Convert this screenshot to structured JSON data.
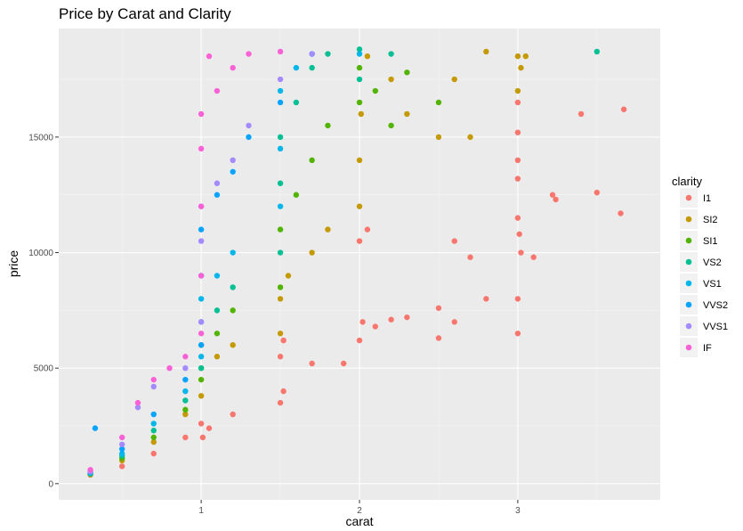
{
  "chart_data": {
    "type": "scatter",
    "title": "Price by Carat and Clarity",
    "xlabel": "carat",
    "ylabel": "price",
    "xlim": [
      0.1,
      3.9
    ],
    "ylim": [
      -700,
      19700
    ],
    "x_ticks": [
      1,
      2,
      3
    ],
    "x_tick_labels": [
      "1",
      "2",
      "3"
    ],
    "y_ticks": [
      0,
      5000,
      10000,
      15000
    ],
    "y_tick_labels": [
      "0",
      "5000",
      "10000",
      "15000"
    ],
    "grid": true,
    "legend": {
      "title": "clarity",
      "position": "right"
    },
    "series": [
      {
        "name": "I1",
        "color": "#F8766D",
        "points": [
          [
            0.3,
            380
          ],
          [
            0.5,
            750
          ],
          [
            0.7,
            1300
          ],
          [
            0.9,
            2000
          ],
          [
            1.0,
            2600
          ],
          [
            1.01,
            2000
          ],
          [
            1.05,
            2400
          ],
          [
            1.2,
            3000
          ],
          [
            1.5,
            3500
          ],
          [
            1.52,
            4000
          ],
          [
            1.5,
            5500
          ],
          [
            1.52,
            6200
          ],
          [
            1.7,
            5200
          ],
          [
            1.9,
            5200
          ],
          [
            2.0,
            6200
          ],
          [
            2.02,
            7000
          ],
          [
            2.1,
            6800
          ],
          [
            2.2,
            7100
          ],
          [
            2.3,
            7200
          ],
          [
            2.5,
            6300
          ],
          [
            2.5,
            7600
          ],
          [
            2.6,
            7000
          ],
          [
            2.0,
            10500
          ],
          [
            2.05,
            11000
          ],
          [
            2.6,
            10500
          ],
          [
            2.7,
            9800
          ],
          [
            2.8,
            8000
          ],
          [
            3.0,
            6500
          ],
          [
            3.0,
            8000
          ],
          [
            3.0,
            11500
          ],
          [
            3.0,
            13200
          ],
          [
            3.0,
            14000
          ],
          [
            3.0,
            15200
          ],
          [
            3.0,
            16500
          ],
          [
            3.01,
            10800
          ],
          [
            3.02,
            10000
          ],
          [
            3.1,
            9800
          ],
          [
            3.22,
            12500
          ],
          [
            3.24,
            12300
          ],
          [
            3.4,
            16000
          ],
          [
            3.5,
            12600
          ],
          [
            3.65,
            11700
          ],
          [
            3.67,
            16200
          ]
        ]
      },
      {
        "name": "SI2",
        "color": "#C49A00",
        "points": [
          [
            0.3,
            400
          ],
          [
            0.5,
            1000
          ],
          [
            0.7,
            1800
          ],
          [
            0.9,
            3000
          ],
          [
            1.0,
            3800
          ],
          [
            1.0,
            5000
          ],
          [
            1.1,
            5500
          ],
          [
            1.2,
            6000
          ],
          [
            1.5,
            6500
          ],
          [
            1.5,
            8000
          ],
          [
            1.55,
            9000
          ],
          [
            1.7,
            10000
          ],
          [
            1.8,
            11000
          ],
          [
            2.0,
            12000
          ],
          [
            2.0,
            14000
          ],
          [
            2.01,
            16000
          ],
          [
            2.05,
            18500
          ],
          [
            2.2,
            17500
          ],
          [
            2.3,
            16000
          ],
          [
            2.5,
            15000
          ],
          [
            2.6,
            17500
          ],
          [
            2.7,
            15000
          ],
          [
            2.8,
            18700
          ],
          [
            3.0,
            17000
          ],
          [
            3.0,
            18500
          ],
          [
            3.02,
            18000
          ],
          [
            3.05,
            18500
          ]
        ]
      },
      {
        "name": "SI1",
        "color": "#53B400",
        "points": [
          [
            0.3,
            420
          ],
          [
            0.5,
            1100
          ],
          [
            0.7,
            2000
          ],
          [
            0.9,
            3200
          ],
          [
            1.0,
            4500
          ],
          [
            1.0,
            6000
          ],
          [
            1.1,
            6500
          ],
          [
            1.2,
            7500
          ],
          [
            1.5,
            8500
          ],
          [
            1.5,
            11000
          ],
          [
            1.6,
            12500
          ],
          [
            1.7,
            14000
          ],
          [
            1.8,
            15500
          ],
          [
            2.0,
            16500
          ],
          [
            2.0,
            18000
          ],
          [
            2.1,
            17000
          ],
          [
            2.2,
            15500
          ],
          [
            2.3,
            17800
          ],
          [
            2.5,
            16500
          ]
        ]
      },
      {
        "name": "VS2",
        "color": "#00C094",
        "points": [
          [
            0.3,
            440
          ],
          [
            0.5,
            1200
          ],
          [
            0.7,
            2300
          ],
          [
            0.9,
            3600
          ],
          [
            1.0,
            5000
          ],
          [
            1.0,
            7000
          ],
          [
            1.1,
            7500
          ],
          [
            1.2,
            8500
          ],
          [
            1.5,
            10000
          ],
          [
            1.5,
            13000
          ],
          [
            1.5,
            15000
          ],
          [
            1.6,
            16500
          ],
          [
            1.7,
            18000
          ],
          [
            1.8,
            18600
          ],
          [
            2.0,
            17500
          ],
          [
            2.0,
            18800
          ],
          [
            2.2,
            18600
          ],
          [
            3.5,
            18700
          ]
        ]
      },
      {
        "name": "VS1",
        "color": "#00B6EB",
        "points": [
          [
            0.3,
            460
          ],
          [
            0.5,
            1300
          ],
          [
            0.7,
            2600
          ],
          [
            0.9,
            4000
          ],
          [
            1.0,
            5500
          ],
          [
            1.0,
            8000
          ],
          [
            1.1,
            9000
          ],
          [
            1.2,
            10000
          ],
          [
            1.5,
            12000
          ],
          [
            1.5,
            14500
          ],
          [
            1.5,
            17000
          ],
          [
            1.6,
            18000
          ],
          [
            1.7,
            18600
          ],
          [
            2.0,
            18600
          ]
        ]
      },
      {
        "name": "VVS2",
        "color": "#06A4FF",
        "points": [
          [
            0.3,
            500
          ],
          [
            0.33,
            2400
          ],
          [
            0.5,
            1500
          ],
          [
            0.7,
            3000
          ],
          [
            0.9,
            4500
          ],
          [
            1.0,
            6000
          ],
          [
            1.0,
            9000
          ],
          [
            1.0,
            11000
          ],
          [
            1.1,
            12500
          ],
          [
            1.2,
            13500
          ],
          [
            1.3,
            15000
          ],
          [
            1.5,
            16500
          ],
          [
            1.7,
            18600
          ]
        ]
      },
      {
        "name": "VVS1",
        "color": "#A58AFF",
        "points": [
          [
            0.3,
            520
          ],
          [
            0.5,
            1700
          ],
          [
            0.6,
            3300
          ],
          [
            0.7,
            4200
          ],
          [
            0.9,
            5000
          ],
          [
            1.0,
            7000
          ],
          [
            1.0,
            10500
          ],
          [
            1.0,
            12000
          ],
          [
            1.1,
            13000
          ],
          [
            1.2,
            14000
          ],
          [
            1.3,
            15500
          ],
          [
            1.5,
            17500
          ],
          [
            1.7,
            18600
          ]
        ]
      },
      {
        "name": "IF",
        "color": "#FB61D7",
        "points": [
          [
            0.3,
            600
          ],
          [
            0.5,
            2000
          ],
          [
            0.6,
            3500
          ],
          [
            0.7,
            4500
          ],
          [
            0.8,
            5000
          ],
          [
            0.9,
            5500
          ],
          [
            1.0,
            6500
          ],
          [
            1.0,
            9000
          ],
          [
            1.0,
            12000
          ],
          [
            1.0,
            14500
          ],
          [
            1.0,
            16000
          ],
          [
            1.05,
            18500
          ],
          [
            1.1,
            17000
          ],
          [
            1.2,
            18000
          ],
          [
            1.3,
            18600
          ],
          [
            1.5,
            18700
          ]
        ]
      }
    ]
  }
}
